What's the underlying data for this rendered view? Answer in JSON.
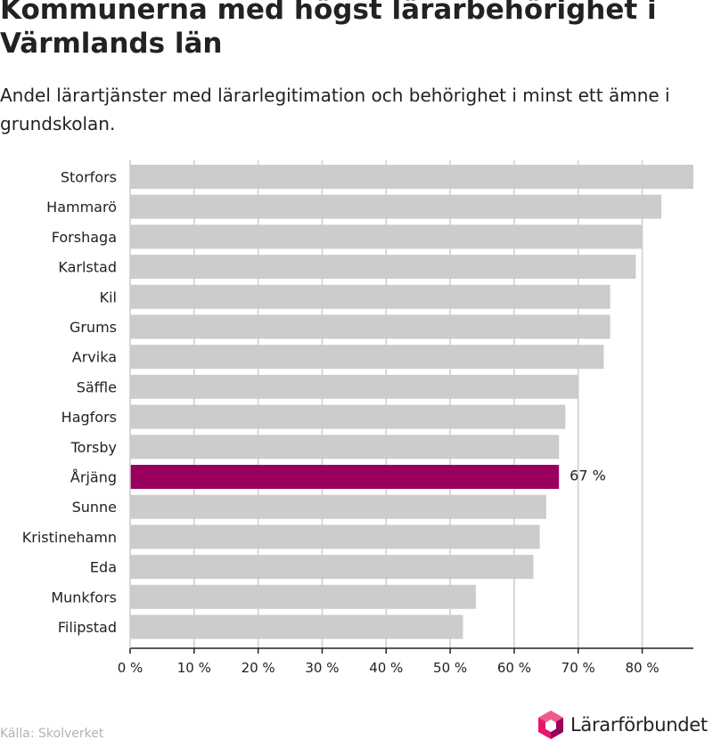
{
  "title": "Kommunerna med högst lärarbehörighet i Värmlands län",
  "subtitle": "Andel lärartjänster med lärarlegitimation och behörighet i minst ett ämne i grundskolan.",
  "source": "Källa: Skolverket",
  "logo": {
    "text": "Lärarförbundet",
    "icon": "lararforbundet-logo-icon"
  },
  "colors": {
    "bar": "#cccccc",
    "highlight": "#99005e",
    "grid": "#cccccc",
    "axis": "#222222",
    "text": "#222222",
    "source": "#b3b3b3"
  },
  "chart_data": {
    "type": "bar",
    "orientation": "horizontal",
    "categories": [
      "Storfors",
      "Hammarö",
      "Forshaga",
      "Karlstad",
      "Kil",
      "Grums",
      "Arvika",
      "Säffle",
      "Hagfors",
      "Torsby",
      "Årjäng",
      "Sunne",
      "Kristinehamn",
      "Eda",
      "Munkfors",
      "Filipstad"
    ],
    "values": [
      88,
      83,
      80,
      79,
      75,
      75,
      74,
      70,
      68,
      67,
      67,
      65,
      64,
      63,
      54,
      52
    ],
    "highlight_index": 10,
    "annotation": {
      "index": 10,
      "text": "67 %"
    },
    "xlim": [
      0,
      88
    ],
    "xticks": [
      0,
      10,
      20,
      30,
      40,
      50,
      60,
      70,
      80
    ],
    "xtick_labels": [
      "0 %",
      "10 %",
      "20 %",
      "30 %",
      "40 %",
      "50 %",
      "60 %",
      "70 %",
      "80 %"
    ],
    "grid": true,
    "legend": "none"
  }
}
